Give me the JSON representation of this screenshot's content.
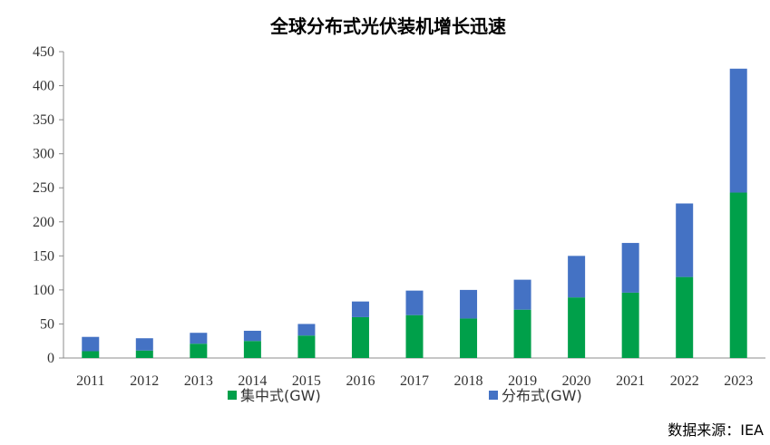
{
  "chart_data": {
    "type": "bar",
    "stacked": true,
    "title": "全球分布式光伏装机增长迅速",
    "categories": [
      "2011",
      "2012",
      "2013",
      "2014",
      "2015",
      "2016",
      "2017",
      "2018",
      "2019",
      "2020",
      "2021",
      "2022",
      "2023"
    ],
    "series": [
      {
        "name": "集中式(GW)",
        "color": "#00a04a",
        "values": [
          10,
          11,
          21,
          25,
          33,
          60,
          63,
          58,
          71,
          89,
          96,
          119,
          243
        ]
      },
      {
        "name": "分布式(GW)",
        "color": "#4472c4",
        "values": [
          21,
          18,
          16,
          15,
          17,
          23,
          36,
          42,
          44,
          61,
          73,
          108,
          182
        ]
      }
    ],
    "ylim": [
      0,
      450
    ],
    "yticks": [
      "0",
      "50",
      "100",
      "150",
      "200",
      "250",
      "300",
      "350",
      "400",
      "450"
    ],
    "grid": false,
    "legend": "bottom",
    "source": "数据来源：IEA"
  }
}
